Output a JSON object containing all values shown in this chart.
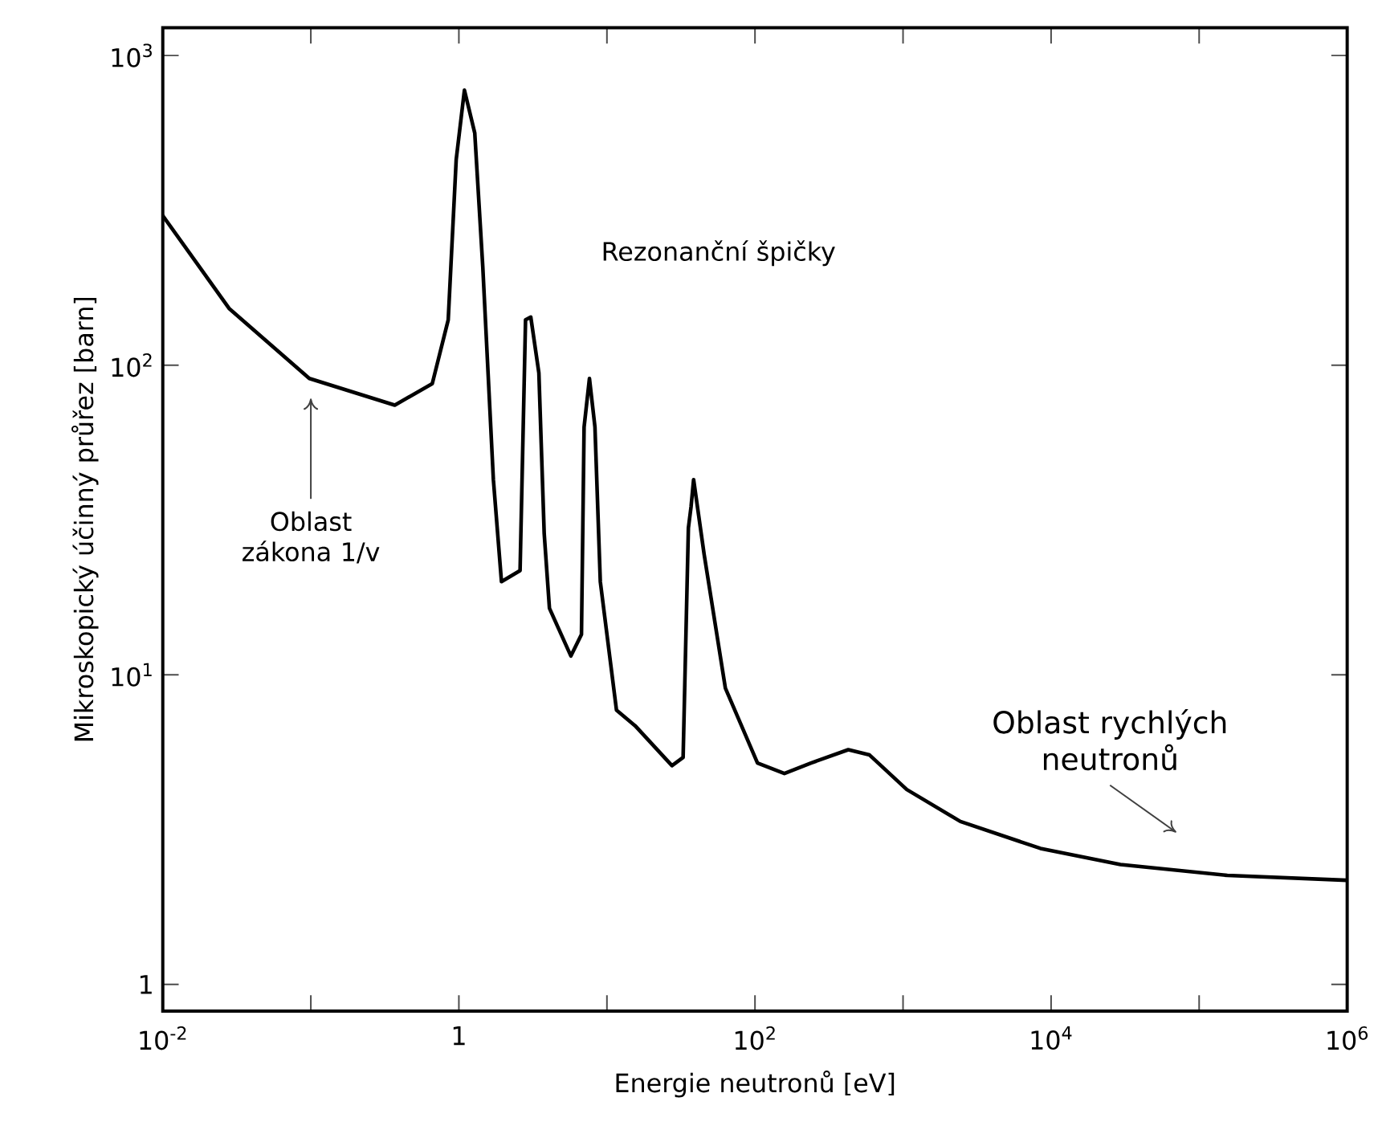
{
  "chart_data": {
    "type": "line",
    "xlabel": "Energie neutronů [eV]",
    "ylabel": "Mikroskopický účinný průřez [barn]",
    "log": "xy",
    "xlim": [
      0.01,
      1000000
    ],
    "ylim": [
      0.82,
      1230
    ],
    "xticks": [
      {
        "value": 0.01,
        "label": "10$^{-2}$"
      },
      {
        "value": 0.1,
        "label": null
      },
      {
        "value": 1,
        "label": "1"
      },
      {
        "value": 10,
        "label": null
      },
      {
        "value": 100,
        "label": "10$^{2}$"
      },
      {
        "value": 1000,
        "label": null
      },
      {
        "value": 10000,
        "label": "10$^{4}$"
      },
      {
        "value": 100000,
        "label": null
      },
      {
        "value": 1000000,
        "label": "10$^{6}$"
      }
    ],
    "yticks": [
      1,
      {
        "value": 10,
        "label": "10$^{1}$"
      },
      {
        "value": 100,
        "label": "10$^{2}$"
      },
      {
        "value": 1000,
        "label": "10$^{3}$"
      }
    ],
    "grid": false,
    "marker": "none",
    "line_style": "solid",
    "annotations": [
      "Rezonanční špičky",
      "Oblast zákona 1/v",
      "Oblast rychlých neutronů"
    ],
    "series": [
      {
        "color": "#000000",
        "x": [
          0.01,
          0.0282,
          0.0977,
          0.369,
          0.661,
          0.847,
          0.959,
          1.09,
          1.28,
          1.45,
          1.71,
          1.94,
          2.59,
          2.82,
          3.06,
          3.47,
          3.77,
          4.09,
          5.71,
          6.73,
          7.01,
          7.62,
          8.3,
          9.02,
          11.6,
          15.5,
          27.5,
          32.7,
          35.5,
          37.0,
          38.5,
          45.4,
          63.1,
          104,
          158,
          239,
          427,
          594,
          1060,
          2440,
          8470,
          29400,
          155000,
          1000000
        ],
        "values": [
          304,
          152,
          90.6,
          74.3,
          87.1,
          140,
          461,
          773,
          562,
          208,
          42.7,
          20.0,
          21.7,
          140,
          143,
          94.4,
          28.6,
          16.4,
          11.5,
          13.5,
          63.1,
          90.6,
          63.1,
          20.0,
          7.69,
          6.85,
          5.09,
          5.41,
          29.8,
          34.9,
          42.7,
          24.4,
          9.06,
          5.19,
          4.8,
          5.19,
          5.73,
          5.51,
          4.26,
          3.36,
          2.75,
          2.44,
          2.25,
          2.17
        ]
      }
    ]
  }
}
